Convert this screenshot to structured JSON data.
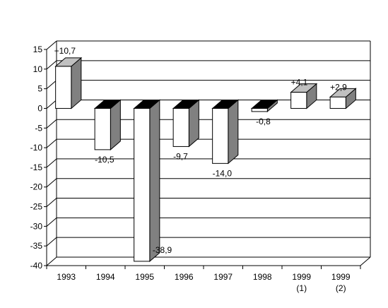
{
  "chart_data": {
    "type": "bar",
    "title": "",
    "xlabel": "",
    "ylabel": "",
    "ylim": [
      -40,
      15
    ],
    "ytick_step": 5,
    "grid": true,
    "legend": "none",
    "categories": [
      {
        "line1": "1993",
        "line2": ""
      },
      {
        "line1": "1994",
        "line2": ""
      },
      {
        "line1": "1995",
        "line2": ""
      },
      {
        "line1": "1996",
        "line2": ""
      },
      {
        "line1": "1997",
        "line2": ""
      },
      {
        "line1": "1998",
        "line2": ""
      },
      {
        "line1": "1999",
        "line2": "(1)"
      },
      {
        "line1": "1999",
        "line2": "(2)"
      }
    ],
    "values": [
      10.7,
      -10.5,
      -38.9,
      -9.7,
      -14.0,
      -0.8,
      4.1,
      2.9
    ],
    "data_labels": [
      "+10,7",
      "-10,5",
      "-38,9",
      "-9,7",
      "-14,0",
      "-0,8",
      "+4,1",
      "+2,9"
    ],
    "colors": {
      "bar_front": "#ffffff",
      "bar_side": "#808080",
      "bar_top_positive": "#c0c0c0",
      "bar_top_negative": "#000000",
      "grid": "#000000"
    }
  }
}
